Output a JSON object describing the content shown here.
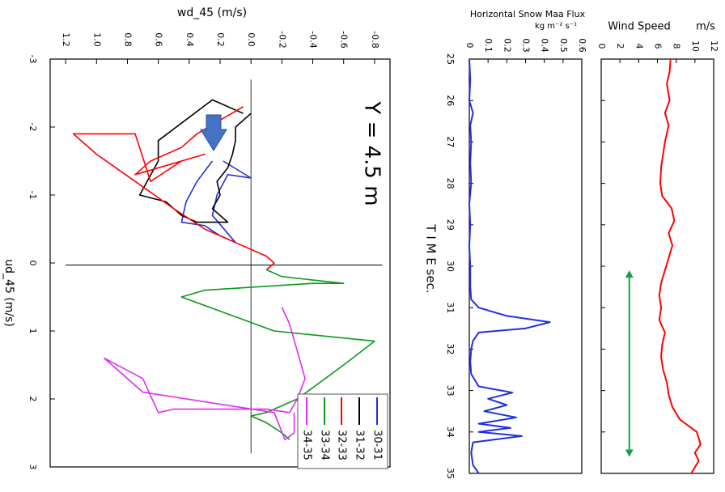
{
  "chart_data": [
    {
      "type": "line",
      "title": "Y = 4.5 m",
      "xlabel": "ud_45 (m/s)",
      "ylabel": "wd_45 (m/s)",
      "xlim": [
        -3,
        3
      ],
      "ylim": [
        -0.9,
        1.3
      ],
      "x_ticks": [
        "-3",
        "-2",
        "-1",
        "0",
        "1",
        "2",
        "3"
      ],
      "y_ticks": [
        "-0.8",
        "-0.6",
        "-0.4",
        "-0.2",
        "0.0",
        "0.2",
        "0.4",
        "0.6",
        "0.8",
        "1.0",
        "1.2"
      ],
      "legend": [
        "30-31",
        "31-32",
        "32-33",
        "33-34",
        "34-35"
      ],
      "series": [
        {
          "name": "30-31",
          "color": "#1f2fe0",
          "points": [
            [
              -1.5,
              0.25
            ],
            [
              -1.2,
              0.35
            ],
            [
              -0.9,
              0.42
            ],
            [
              -0.6,
              0.45
            ],
            [
              -0.55,
              0.3
            ],
            [
              -0.4,
              0.2
            ],
            [
              -0.3,
              0.1
            ],
            [
              -0.7,
              0.25
            ],
            [
              -1.0,
              0.22
            ],
            [
              -1.3,
              0.15
            ],
            [
              -1.25,
              0.0
            ],
            [
              -1.5,
              0.18
            ]
          ]
        },
        {
          "name": "31-32",
          "color": "#000000",
          "points": [
            [
              -2.2,
              0.0
            ],
            [
              -2.0,
              0.1
            ],
            [
              -1.8,
              0.1
            ],
            [
              -1.6,
              0.12
            ],
            [
              -1.4,
              0.15
            ],
            [
              -1.2,
              0.22
            ],
            [
              -1.0,
              0.2
            ],
            [
              -0.8,
              0.25
            ],
            [
              -0.6,
              0.15
            ],
            [
              -0.6,
              0.35
            ],
            [
              -0.7,
              0.45
            ],
            [
              -0.9,
              0.55
            ],
            [
              -1.0,
              0.72
            ],
            [
              -1.5,
              0.6
            ],
            [
              -1.8,
              0.6
            ],
            [
              -2.4,
              0.25
            ],
            [
              -2.2,
              0.05
            ]
          ]
        },
        {
          "name": "32-33",
          "color": "#ff0000",
          "points": [
            [
              -2.3,
              0.05
            ],
            [
              -2.1,
              0.2
            ],
            [
              -1.9,
              0.35
            ],
            [
              -1.7,
              0.45
            ],
            [
              -1.5,
              0.65
            ],
            [
              -1.3,
              0.75
            ],
            [
              -1.6,
              0.3
            ],
            [
              -1.5,
              0.45
            ],
            [
              -1.2,
              0.65
            ],
            [
              -1.9,
              0.75
            ],
            [
              -1.9,
              1.15
            ],
            [
              -1.6,
              1.0
            ],
            [
              -1.2,
              0.75
            ],
            [
              -0.8,
              0.5
            ],
            [
              -0.5,
              0.3
            ],
            [
              -0.3,
              0.1
            ],
            [
              -0.1,
              -0.1
            ],
            [
              0.0,
              -0.15
            ],
            [
              0.1,
              -0.1
            ]
          ]
        },
        {
          "name": "33-34",
          "color": "#0a9a1a",
          "points": [
            [
              0.1,
              -0.1
            ],
            [
              0.2,
              -0.2
            ],
            [
              0.3,
              -0.6
            ],
            [
              0.3,
              -0.4
            ],
            [
              0.4,
              0.3
            ],
            [
              0.5,
              0.45
            ],
            [
              1.0,
              -0.15
            ],
            [
              1.15,
              -0.8
            ],
            [
              1.5,
              -0.6
            ],
            [
              2.0,
              -0.3
            ],
            [
              2.2,
              -0.1
            ],
            [
              2.25,
              0.0
            ],
            [
              2.35,
              -0.1
            ],
            [
              2.5,
              -0.2
            ],
            [
              2.6,
              -0.25
            ]
          ]
        },
        {
          "name": "34-35",
          "color": "#e02cf0",
          "points": [
            [
              0.65,
              -0.2
            ],
            [
              0.9,
              -0.25
            ],
            [
              1.3,
              -0.3
            ],
            [
              1.7,
              -0.35
            ],
            [
              2.0,
              -0.3
            ],
            [
              2.2,
              -0.25
            ],
            [
              2.15,
              -0.1
            ],
            [
              2.15,
              0.5
            ],
            [
              2.2,
              0.6
            ],
            [
              1.7,
              0.7
            ],
            [
              1.4,
              0.95
            ],
            [
              1.6,
              0.85
            ],
            [
              1.9,
              0.7
            ],
            [
              2.2,
              -0.15
            ],
            [
              2.6,
              -0.22
            ],
            [
              2.5,
              -0.28
            ],
            [
              2.2,
              -0.28
            ]
          ]
        }
      ]
    },
    {
      "type": "line",
      "title": "Horizontal Snow Maa Flux",
      "units": "kg m⁻² s⁻¹",
      "xlabel": "T I M E sec.",
      "xlim": [
        25,
        35
      ],
      "ylim": [
        0,
        0.6
      ],
      "x_ticks": [
        "25",
        "26",
        "27",
        "28",
        "29",
        "30",
        "31",
        "32",
        "33",
        "34",
        "35"
      ],
      "y_ticks": [
        "0",
        "0.1",
        "0.2",
        "0.3",
        "0.4",
        "0.5",
        "0.6"
      ],
      "series": [
        {
          "name": "flux",
          "color": "#1f2fe0",
          "points": [
            [
              25,
              0.0
            ],
            [
              25.5,
              0.005
            ],
            [
              26,
              0.0
            ],
            [
              26.3,
              0.02
            ],
            [
              26.6,
              0.005
            ],
            [
              27,
              0.01
            ],
            [
              27.5,
              0.005
            ],
            [
              28,
              0.01
            ],
            [
              28.5,
              0.0
            ],
            [
              29,
              0.005
            ],
            [
              29.5,
              0.0
            ],
            [
              30,
              0.005
            ],
            [
              30.5,
              0.005
            ],
            [
              30.8,
              0.01
            ],
            [
              31.0,
              0.05
            ],
            [
              31.2,
              0.2
            ],
            [
              31.35,
              0.43
            ],
            [
              31.5,
              0.3
            ],
            [
              31.6,
              0.05
            ],
            [
              31.8,
              0.02
            ],
            [
              32.0,
              0.01
            ],
            [
              32.3,
              0.005
            ],
            [
              32.6,
              0.01
            ],
            [
              32.9,
              0.05
            ],
            [
              33.05,
              0.23
            ],
            [
              33.2,
              0.1
            ],
            [
              33.35,
              0.2
            ],
            [
              33.5,
              0.08
            ],
            [
              33.65,
              0.25
            ],
            [
              33.8,
              0.05
            ],
            [
              33.9,
              0.22
            ],
            [
              34.0,
              0.05
            ],
            [
              34.1,
              0.28
            ],
            [
              34.25,
              0.02
            ],
            [
              34.5,
              0.01
            ],
            [
              34.8,
              0.02
            ],
            [
              35,
              0.05
            ]
          ]
        }
      ]
    },
    {
      "type": "line",
      "title": "Wind Speed",
      "ylabel": "m/s",
      "xlim": [
        25,
        35
      ],
      "ylim": [
        0,
        12
      ],
      "y_ticks": [
        "0",
        "2",
        "4",
        "6",
        "8",
        "10",
        "12"
      ],
      "annotations": [
        "double-headed arrow from t=30.1 to t=34.6 at 3 m/s"
      ],
      "series": [
        {
          "name": "wind",
          "color": "#ff0000",
          "points": [
            [
              25,
              7.4
            ],
            [
              25.3,
              7.3
            ],
            [
              25.6,
              7.0
            ],
            [
              26.0,
              7.3
            ],
            [
              26.3,
              6.8
            ],
            [
              26.6,
              7.2
            ],
            [
              27.0,
              6.8
            ],
            [
              27.3,
              6.6
            ],
            [
              27.6,
              6.4
            ],
            [
              28.0,
              6.3
            ],
            [
              28.3,
              6.5
            ],
            [
              28.6,
              7.5
            ],
            [
              28.9,
              7.8
            ],
            [
              29.2,
              7.2
            ],
            [
              29.5,
              7.6
            ],
            [
              29.8,
              7.2
            ],
            [
              30.1,
              6.8
            ],
            [
              30.4,
              6.4
            ],
            [
              30.7,
              6.2
            ],
            [
              31.0,
              6.4
            ],
            [
              31.3,
              6.2
            ],
            [
              31.6,
              6.8
            ],
            [
              31.9,
              6.5
            ],
            [
              32.2,
              6.4
            ],
            [
              32.5,
              6.6
            ],
            [
              32.8,
              7.0
            ],
            [
              33.1,
              7.2
            ],
            [
              33.4,
              7.6
            ],
            [
              33.7,
              8.4
            ],
            [
              34.0,
              10.2
            ],
            [
              34.3,
              10.6
            ],
            [
              34.5,
              10.0
            ],
            [
              34.7,
              10.4
            ],
            [
              35.0,
              9.6
            ]
          ]
        }
      ]
    }
  ],
  "colors": {
    "arrow_blue": "#4472c4",
    "arrow_green": "#13a04a"
  }
}
